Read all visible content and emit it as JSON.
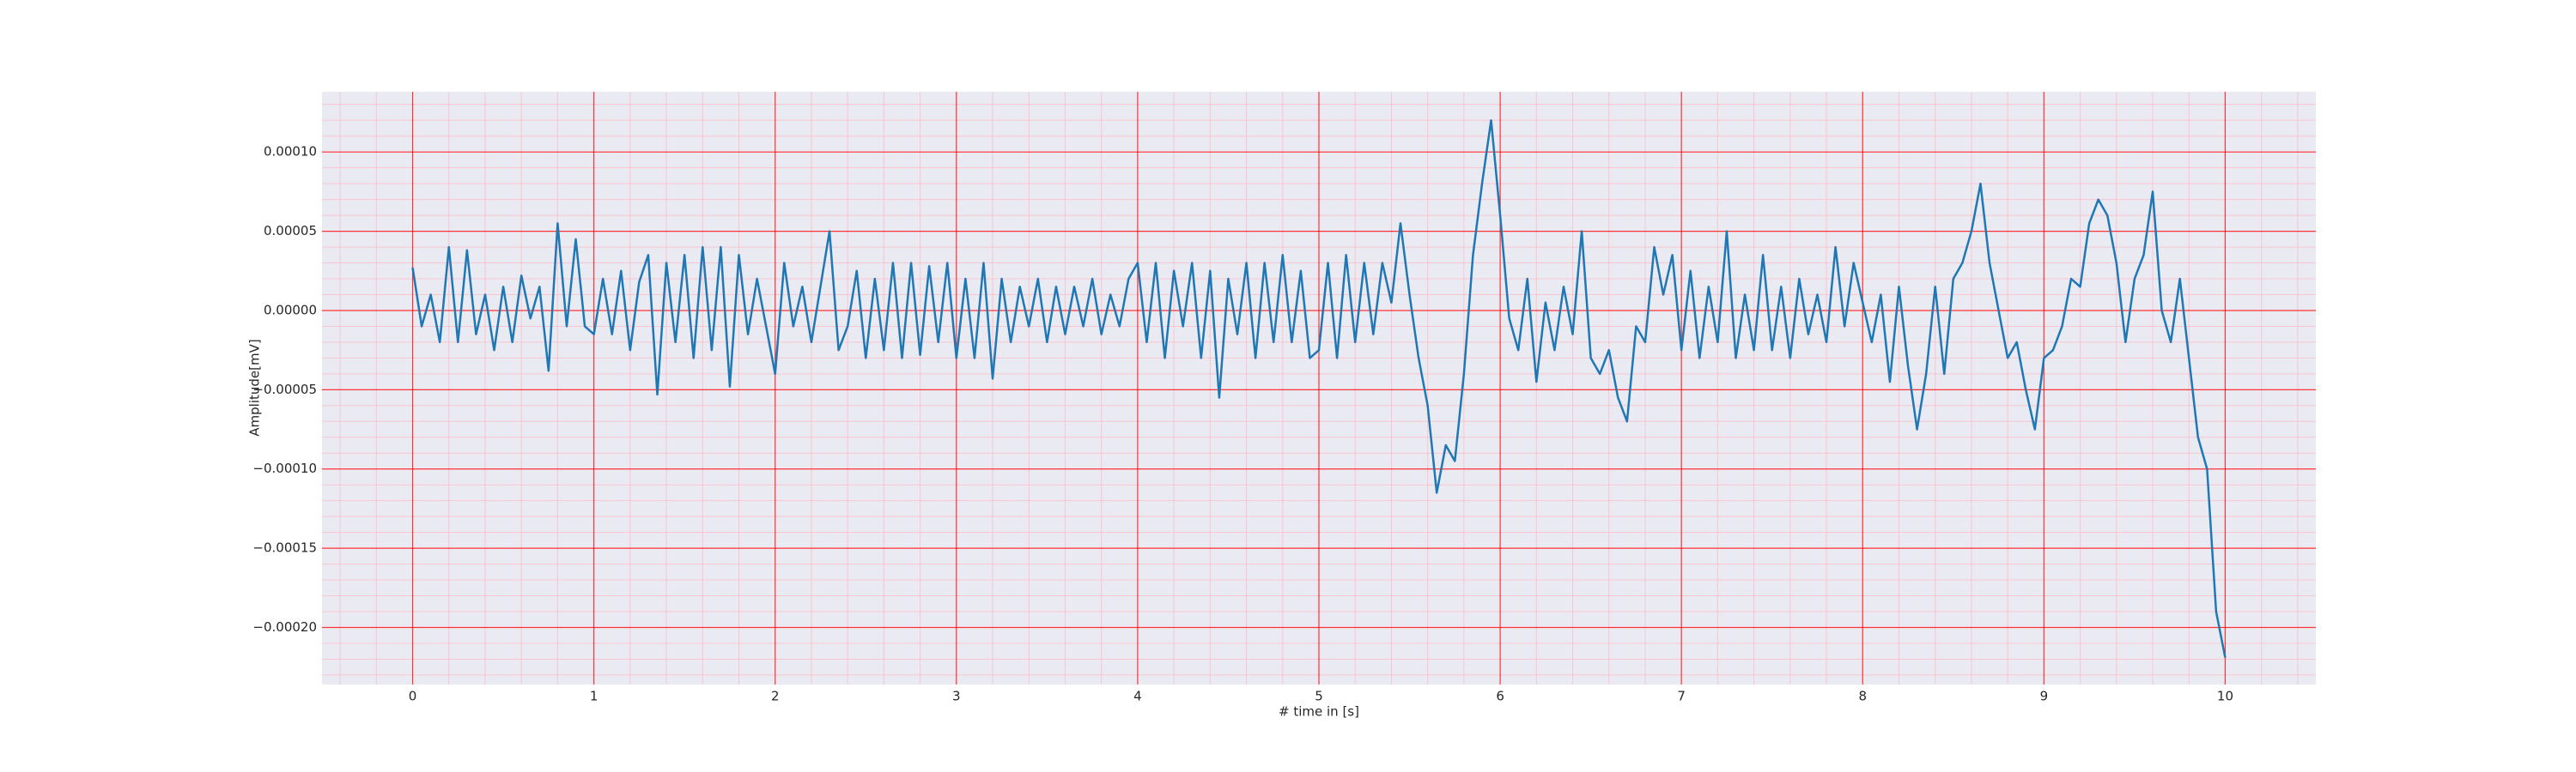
{
  "chart_data": {
    "type": "line",
    "xlabel": "# time in [s]",
    "ylabel": "Amplitude[mV]",
    "color": "#1f77b4",
    "background": "#eaeaf2",
    "grid": true,
    "grid_color": "#ff0000",
    "minor_grid": {
      "x": 0.2,
      "y": 1e-05,
      "color": "#ffb6c1"
    },
    "xlim": [
      -0.5,
      10.5
    ],
    "ylim": [
      -0.000236,
      0.000138
    ],
    "xticks": [
      0,
      1,
      2,
      3,
      4,
      5,
      6,
      7,
      8,
      9,
      10
    ],
    "yticks": [
      {
        "value": -0.0002,
        "label": "−0.00020"
      },
      {
        "value": -0.00015,
        "label": "−0.00015"
      },
      {
        "value": -0.0001,
        "label": "−0.00010"
      },
      {
        "value": -5e-05,
        "label": "−0.00005"
      },
      {
        "value": 0,
        "label": "0.00000"
      },
      {
        "value": 5e-05,
        "label": "0.00005"
      },
      {
        "value": 0.0001,
        "label": "0.00010"
      }
    ],
    "x": [
      0,
      0.05,
      0.1,
      0.15,
      0.2,
      0.25,
      0.3,
      0.35,
      0.4,
      0.45,
      0.5,
      0.55,
      0.6,
      0.65,
      0.7,
      0.75,
      0.8,
      0.85,
      0.9,
      0.95,
      1,
      1.05,
      1.1,
      1.15,
      1.2,
      1.25,
      1.3,
      1.35,
      1.4,
      1.45,
      1.5,
      1.55,
      1.6,
      1.65,
      1.7,
      1.75,
      1.8,
      1.85,
      1.9,
      1.95,
      2,
      2.05,
      2.1,
      2.15,
      2.2,
      2.25,
      2.3,
      2.35,
      2.4,
      2.45,
      2.5,
      2.55,
      2.6,
      2.65,
      2.7,
      2.75,
      2.8,
      2.85,
      2.9,
      2.95,
      3,
      3.05,
      3.1,
      3.15,
      3.2,
      3.25,
      3.3,
      3.35,
      3.4,
      3.45,
      3.5,
      3.55,
      3.6,
      3.65,
      3.7,
      3.75,
      3.8,
      3.85,
      3.9,
      3.95,
      4,
      4.05,
      4.1,
      4.15,
      4.2,
      4.25,
      4.3,
      4.35,
      4.4,
      4.45,
      4.5,
      4.55,
      4.6,
      4.65,
      4.7,
      4.75,
      4.8,
      4.85,
      4.9,
      4.95,
      5,
      5.05,
      5.1,
      5.15,
      5.2,
      5.25,
      5.3,
      5.35,
      5.4,
      5.45,
      5.5,
      5.55,
      5.6,
      5.65,
      5.7,
      5.75,
      5.8,
      5.85,
      5.9,
      5.95,
      6,
      6.05,
      6.1,
      6.15,
      6.2,
      6.25,
      6.3,
      6.35,
      6.4,
      6.45,
      6.5,
      6.55,
      6.6,
      6.65,
      6.7,
      6.75,
      6.8,
      6.85,
      6.9,
      6.95,
      7,
      7.05,
      7.1,
      7.15,
      7.2,
      7.25,
      7.3,
      7.35,
      7.4,
      7.45,
      7.5,
      7.55,
      7.6,
      7.65,
      7.7,
      7.75,
      7.8,
      7.85,
      7.9,
      7.95,
      8,
      8.05,
      8.1,
      8.15,
      8.2,
      8.25,
      8.3,
      8.35,
      8.4,
      8.45,
      8.5,
      8.55,
      8.6,
      8.65,
      8.7,
      8.75,
      8.8,
      8.85,
      8.9,
      8.95,
      9,
      9.05,
      9.1,
      9.15,
      9.2,
      9.25,
      9.3,
      9.35,
      9.4,
      9.45,
      9.5,
      9.55,
      9.6,
      9.65,
      9.7,
      9.75,
      9.8,
      9.85,
      9.9,
      9.95,
      10
    ],
    "values": [
      2.7e-05,
      -1e-05,
      1e-05,
      -2e-05,
      4e-05,
      -2e-05,
      3.8e-05,
      -1.5e-05,
      1e-05,
      -2.5e-05,
      1.5e-05,
      -2e-05,
      2.2e-05,
      -5e-06,
      1.5e-05,
      -3.8e-05,
      5.5e-05,
      -1e-05,
      4.5e-05,
      -1e-05,
      -1.5e-05,
      2e-05,
      -1.5e-05,
      2.5e-05,
      -2.5e-05,
      1.8e-05,
      3.5e-05,
      -5.3e-05,
      3e-05,
      -2e-05,
      3.5e-05,
      -3e-05,
      4e-05,
      -2.5e-05,
      4e-05,
      -4.8e-05,
      3.5e-05,
      -1.5e-05,
      2e-05,
      -1e-05,
      -4e-05,
      3e-05,
      -1e-05,
      1.5e-05,
      -2e-05,
      1.5e-05,
      5e-05,
      -2.5e-05,
      -1e-05,
      2.5e-05,
      -3e-05,
      2e-05,
      -2.5e-05,
      3e-05,
      -3e-05,
      3e-05,
      -2.8e-05,
      2.8e-05,
      -2e-05,
      3e-05,
      -3e-05,
      2e-05,
      -3e-05,
      3e-05,
      -4.3e-05,
      2e-05,
      -2e-05,
      1.5e-05,
      -1e-05,
      2e-05,
      -2e-05,
      1.5e-05,
      -1.5e-05,
      1.5e-05,
      -1e-05,
      2e-05,
      -1.5e-05,
      1e-05,
      -1e-05,
      2e-05,
      3e-05,
      -2e-05,
      3e-05,
      -3e-05,
      2.5e-05,
      -1e-05,
      3e-05,
      -3e-05,
      2.5e-05,
      -5.5e-05,
      2e-05,
      -1.5e-05,
      3e-05,
      -3e-05,
      3e-05,
      -2e-05,
      3.5e-05,
      -2e-05,
      2.5e-05,
      -3e-05,
      -2.5e-05,
      3e-05,
      -3e-05,
      3.5e-05,
      -2e-05,
      3e-05,
      -1.5e-05,
      3e-05,
      5e-06,
      5.5e-05,
      1e-05,
      -3e-05,
      -6e-05,
      -0.000115,
      -8.5e-05,
      -9.5e-05,
      -4e-05,
      3.5e-05,
      8e-05,
      0.00012,
      6e-05,
      -5e-06,
      -2.5e-05,
      2e-05,
      -4.5e-05,
      5e-06,
      -2.5e-05,
      1.5e-05,
      -1.5e-05,
      5e-05,
      -3e-05,
      -4e-05,
      -2.5e-05,
      -5.5e-05,
      -7e-05,
      -1e-05,
      -2e-05,
      4e-05,
      1e-05,
      3.5e-05,
      -2.5e-05,
      2.5e-05,
      -3e-05,
      1.5e-05,
      -2e-05,
      5e-05,
      -3e-05,
      1e-05,
      -2.5e-05,
      3.5e-05,
      -2.5e-05,
      1.5e-05,
      -3e-05,
      2e-05,
      -1.5e-05,
      1e-05,
      -2e-05,
      4e-05,
      -1e-05,
      3e-05,
      5e-06,
      -2e-05,
      1e-05,
      -4.5e-05,
      1.5e-05,
      -3.5e-05,
      -7.5e-05,
      -4e-05,
      1.5e-05,
      -4e-05,
      2e-05,
      3e-05,
      5e-05,
      8e-05,
      3e-05,
      0.0,
      -3e-05,
      -2e-05,
      -5e-05,
      -7.5e-05,
      -3e-05,
      -2.5e-05,
      -1e-05,
      2e-05,
      1.5e-05,
      5.5e-05,
      7e-05,
      6e-05,
      3e-05,
      -2e-05,
      2e-05,
      3.5e-05,
      7.5e-05,
      0.0,
      -2e-05,
      2e-05,
      -3e-05,
      -8e-05,
      -0.0001,
      -0.00019,
      -0.000219
    ]
  }
}
